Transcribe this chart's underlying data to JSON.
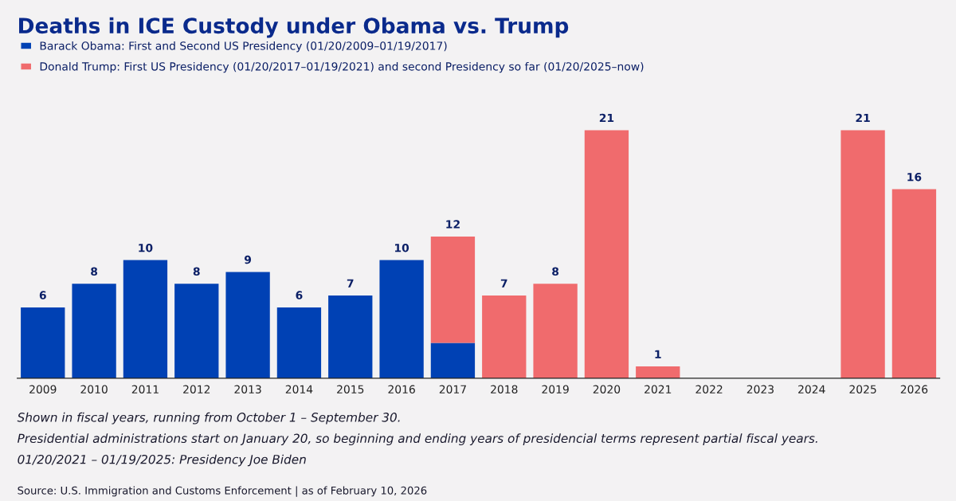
{
  "chart_data": {
    "type": "bar",
    "title": "Deaths in ICE Custody under Obama vs. Trump",
    "categories": [
      "2009",
      "2010",
      "2011",
      "2012",
      "2013",
      "2014",
      "2015",
      "2016",
      "2017",
      "2018",
      "2019",
      "2020",
      "2021",
      "2022",
      "2023",
      "2024",
      "2025",
      "2026"
    ],
    "stacked": true,
    "series": [
      {
        "name": "Barack Obama: First and Second US Presidency (01/20/2009–01/19/2017)",
        "color": "#0041b4",
        "values": [
          6,
          8,
          10,
          8,
          9,
          6,
          7,
          10,
          3,
          null,
          null,
          null,
          null,
          null,
          null,
          null,
          null,
          null
        ],
        "value_labels": [
          "6",
          "8",
          "10",
          "8",
          "9",
          "6",
          "7",
          "10",
          null,
          null,
          null,
          null,
          null,
          null,
          null,
          null,
          null,
          null
        ]
      },
      {
        "name": "Donald Trump: First US Presidency (01/20/2017–01/19/2021) and second Presidency so far (01/20/2025–now)",
        "color": "#f06b6d",
        "values": [
          null,
          null,
          null,
          null,
          null,
          null,
          null,
          null,
          9,
          7,
          8,
          21,
          1,
          null,
          null,
          null,
          21,
          16
        ],
        "value_labels": [
          null,
          null,
          null,
          null,
          null,
          null,
          null,
          null,
          null,
          "7",
          "8",
          "21",
          "1",
          null,
          null,
          null,
          "21",
          "16"
        ]
      }
    ],
    "totals": [
      null,
      null,
      null,
      null,
      null,
      null,
      null,
      null,
      "12",
      null,
      null,
      null,
      null,
      null,
      null,
      null,
      null,
      null
    ],
    "legend": "top left",
    "grid": false,
    "annotations": [
      "Shown in fiscal years, running from October 1 – September 30.",
      "Presidential administrations start on January 20, so beginning and ending years of presidencial terms represent partial fiscal years.",
      "01/20/2021 – 01/19/2025: Presidency Joe Biden",
      "Source: U.S. Immigration and Customs Enforcement | as of February 10, 2026"
    ]
  }
}
